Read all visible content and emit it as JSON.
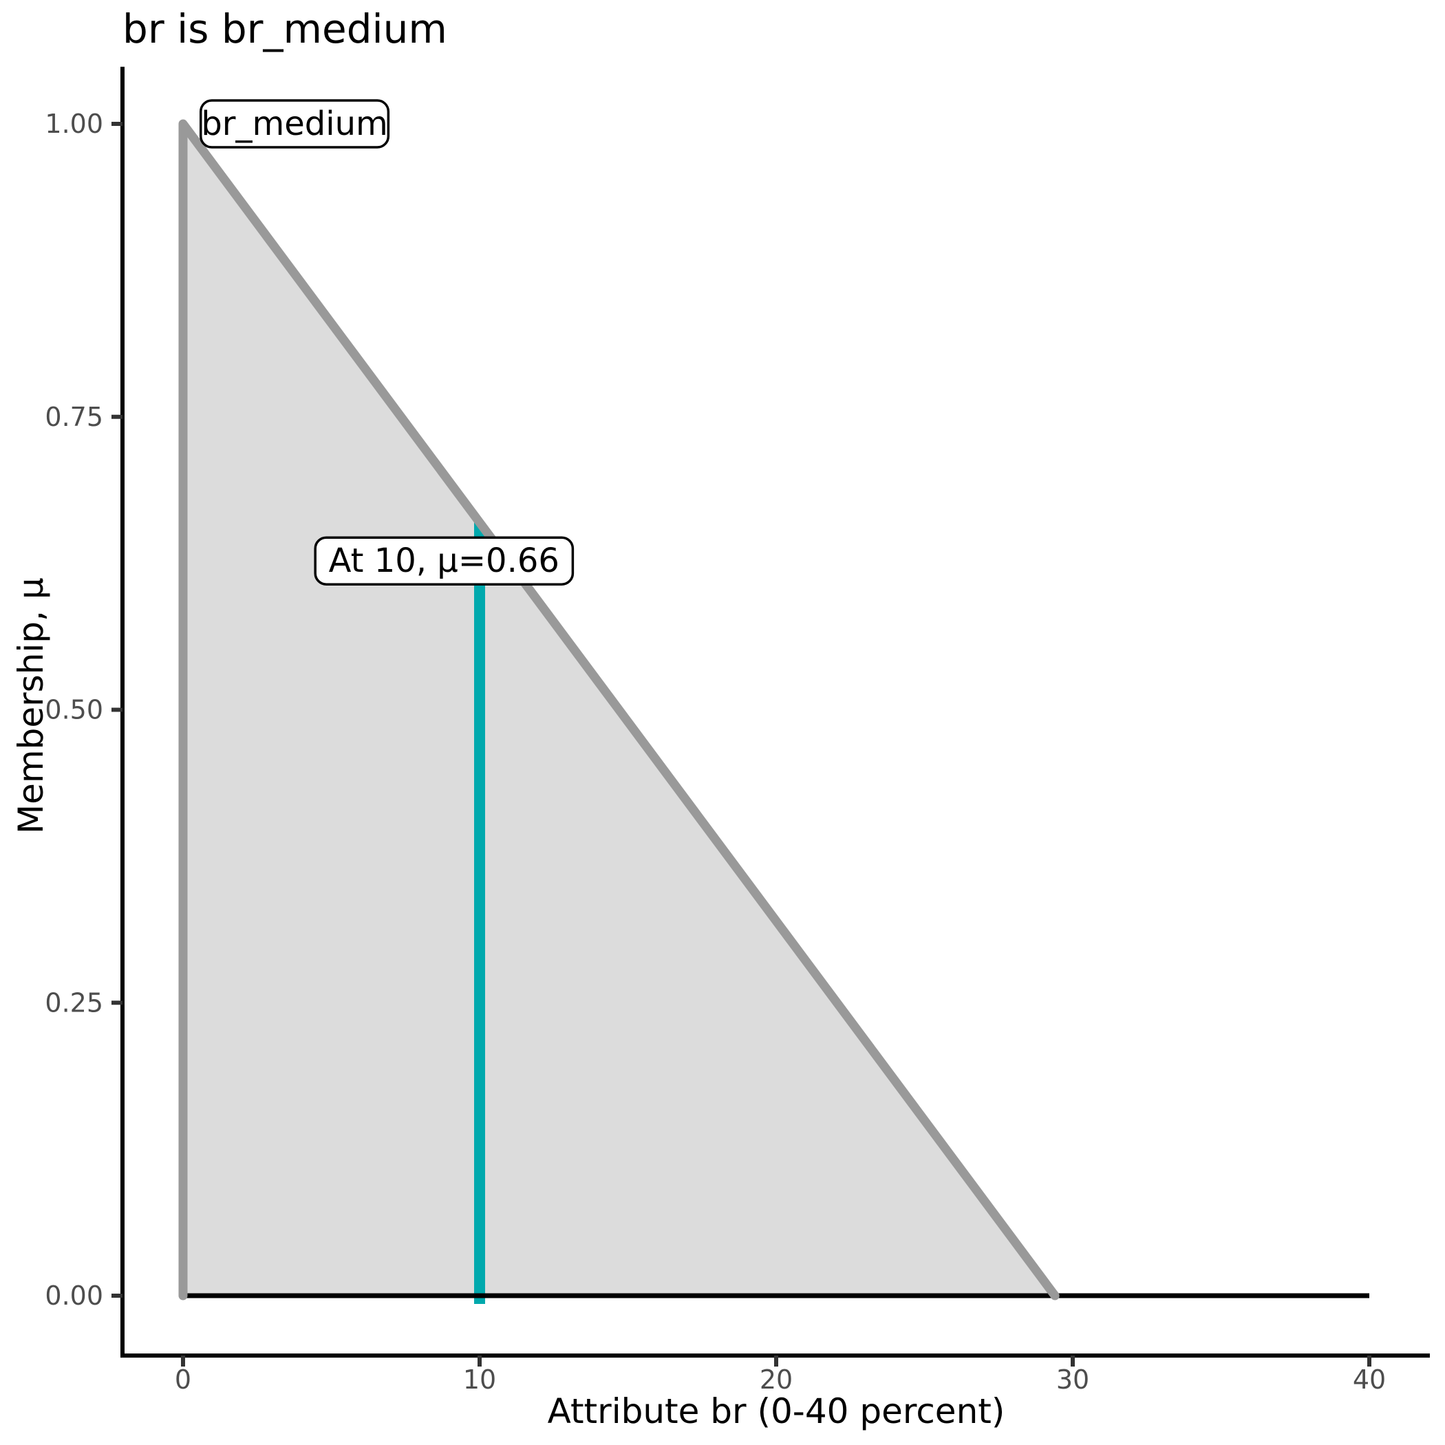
{
  "chart_data": {
    "type": "area",
    "title": "br is br_medium",
    "xlabel": "Attribute br (0-40 percent)",
    "ylabel": "Membership, μ",
    "xlim": [
      0,
      40
    ],
    "ylim": [
      0,
      1
    ],
    "grid": "off",
    "legend": "none",
    "x_ticks": [
      {
        "value": 0,
        "label": "0"
      },
      {
        "value": 10,
        "label": "10"
      },
      {
        "value": 20,
        "label": "20"
      },
      {
        "value": 30,
        "label": "30"
      },
      {
        "value": 40,
        "label": "40"
      }
    ],
    "y_ticks": [
      {
        "value": 0.0,
        "label": "0.00"
      },
      {
        "value": 0.25,
        "label": "0.25"
      },
      {
        "value": 0.5,
        "label": "0.50"
      },
      {
        "value": 0.75,
        "label": "0.75"
      },
      {
        "value": 1.0,
        "label": "1.00"
      }
    ],
    "series": [
      {
        "name": "br_medium",
        "role": "membership-function",
        "points": [
          [
            0,
            0
          ],
          [
            0,
            1
          ],
          [
            29.4,
            0
          ]
        ],
        "stroke": "#999999",
        "fill": "#DCDCDC"
      },
      {
        "name": "zero-membership-baseline",
        "role": "baseline",
        "points": [
          [
            0,
            0
          ],
          [
            40,
            0
          ]
        ],
        "stroke": "#000000"
      },
      {
        "name": "evaluation-marker",
        "role": "vertical-marker",
        "x": 10,
        "mu": 0.66,
        "stroke": "#00A9AD"
      }
    ],
    "annotations": [
      {
        "name": "set-label",
        "text": "br_medium",
        "x": 3.76,
        "y": 1.0
      },
      {
        "name": "evaluation-label",
        "text": "At 10, μ=0.66",
        "x": 8.8,
        "y": 0.627
      }
    ],
    "colors": {
      "axis_line": "#000000",
      "tick_mark": "#333333",
      "tick_label": "#4D4D4D",
      "title_text": "#000000",
      "label_box_fill": "#FFFFFF",
      "label_box_border": "#000000"
    }
  }
}
